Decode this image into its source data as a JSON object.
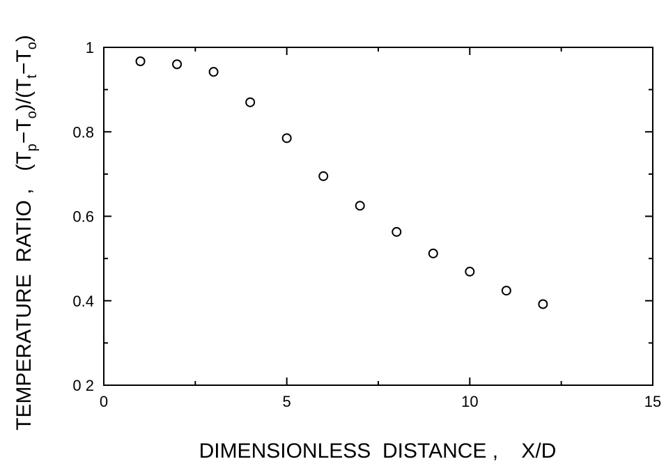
{
  "chart_data": {
    "type": "scatter",
    "title": "",
    "xlabel": "DIMENSIONLESS  DISTANCE ,    X/D",
    "ylabel": {
      "prefix": "TEMPERATURE  RATIO ,   (T",
      "sub_p": "p",
      "mid1": "−T",
      "sub_o1": "o",
      "mid2": ")/(T",
      "sub_t": "t",
      "mid3": "−T",
      "sub_o2": "o",
      "suffix": ")"
    },
    "xlim": [
      0,
      15
    ],
    "ylim": [
      0.2,
      1.0
    ],
    "x_ticks": [
      0,
      5,
      10,
      15
    ],
    "x_tick_labels": [
      "0",
      "5",
      "10",
      "15"
    ],
    "y_ticks": [
      0.2,
      0.4,
      0.6,
      0.8,
      1.0
    ],
    "y_tick_labels": [
      "0 2",
      "0.4",
      "0.6",
      "0.8",
      "1"
    ],
    "grid": false,
    "legend": "none",
    "marker": "open-circle",
    "x": [
      1,
      2,
      3,
      4,
      5,
      6,
      7,
      8,
      9,
      10,
      11,
      12
    ],
    "y": [
      0.967,
      0.96,
      0.942,
      0.87,
      0.785,
      0.695,
      0.625,
      0.563,
      0.512,
      0.469,
      0.424,
      0.392
    ]
  }
}
